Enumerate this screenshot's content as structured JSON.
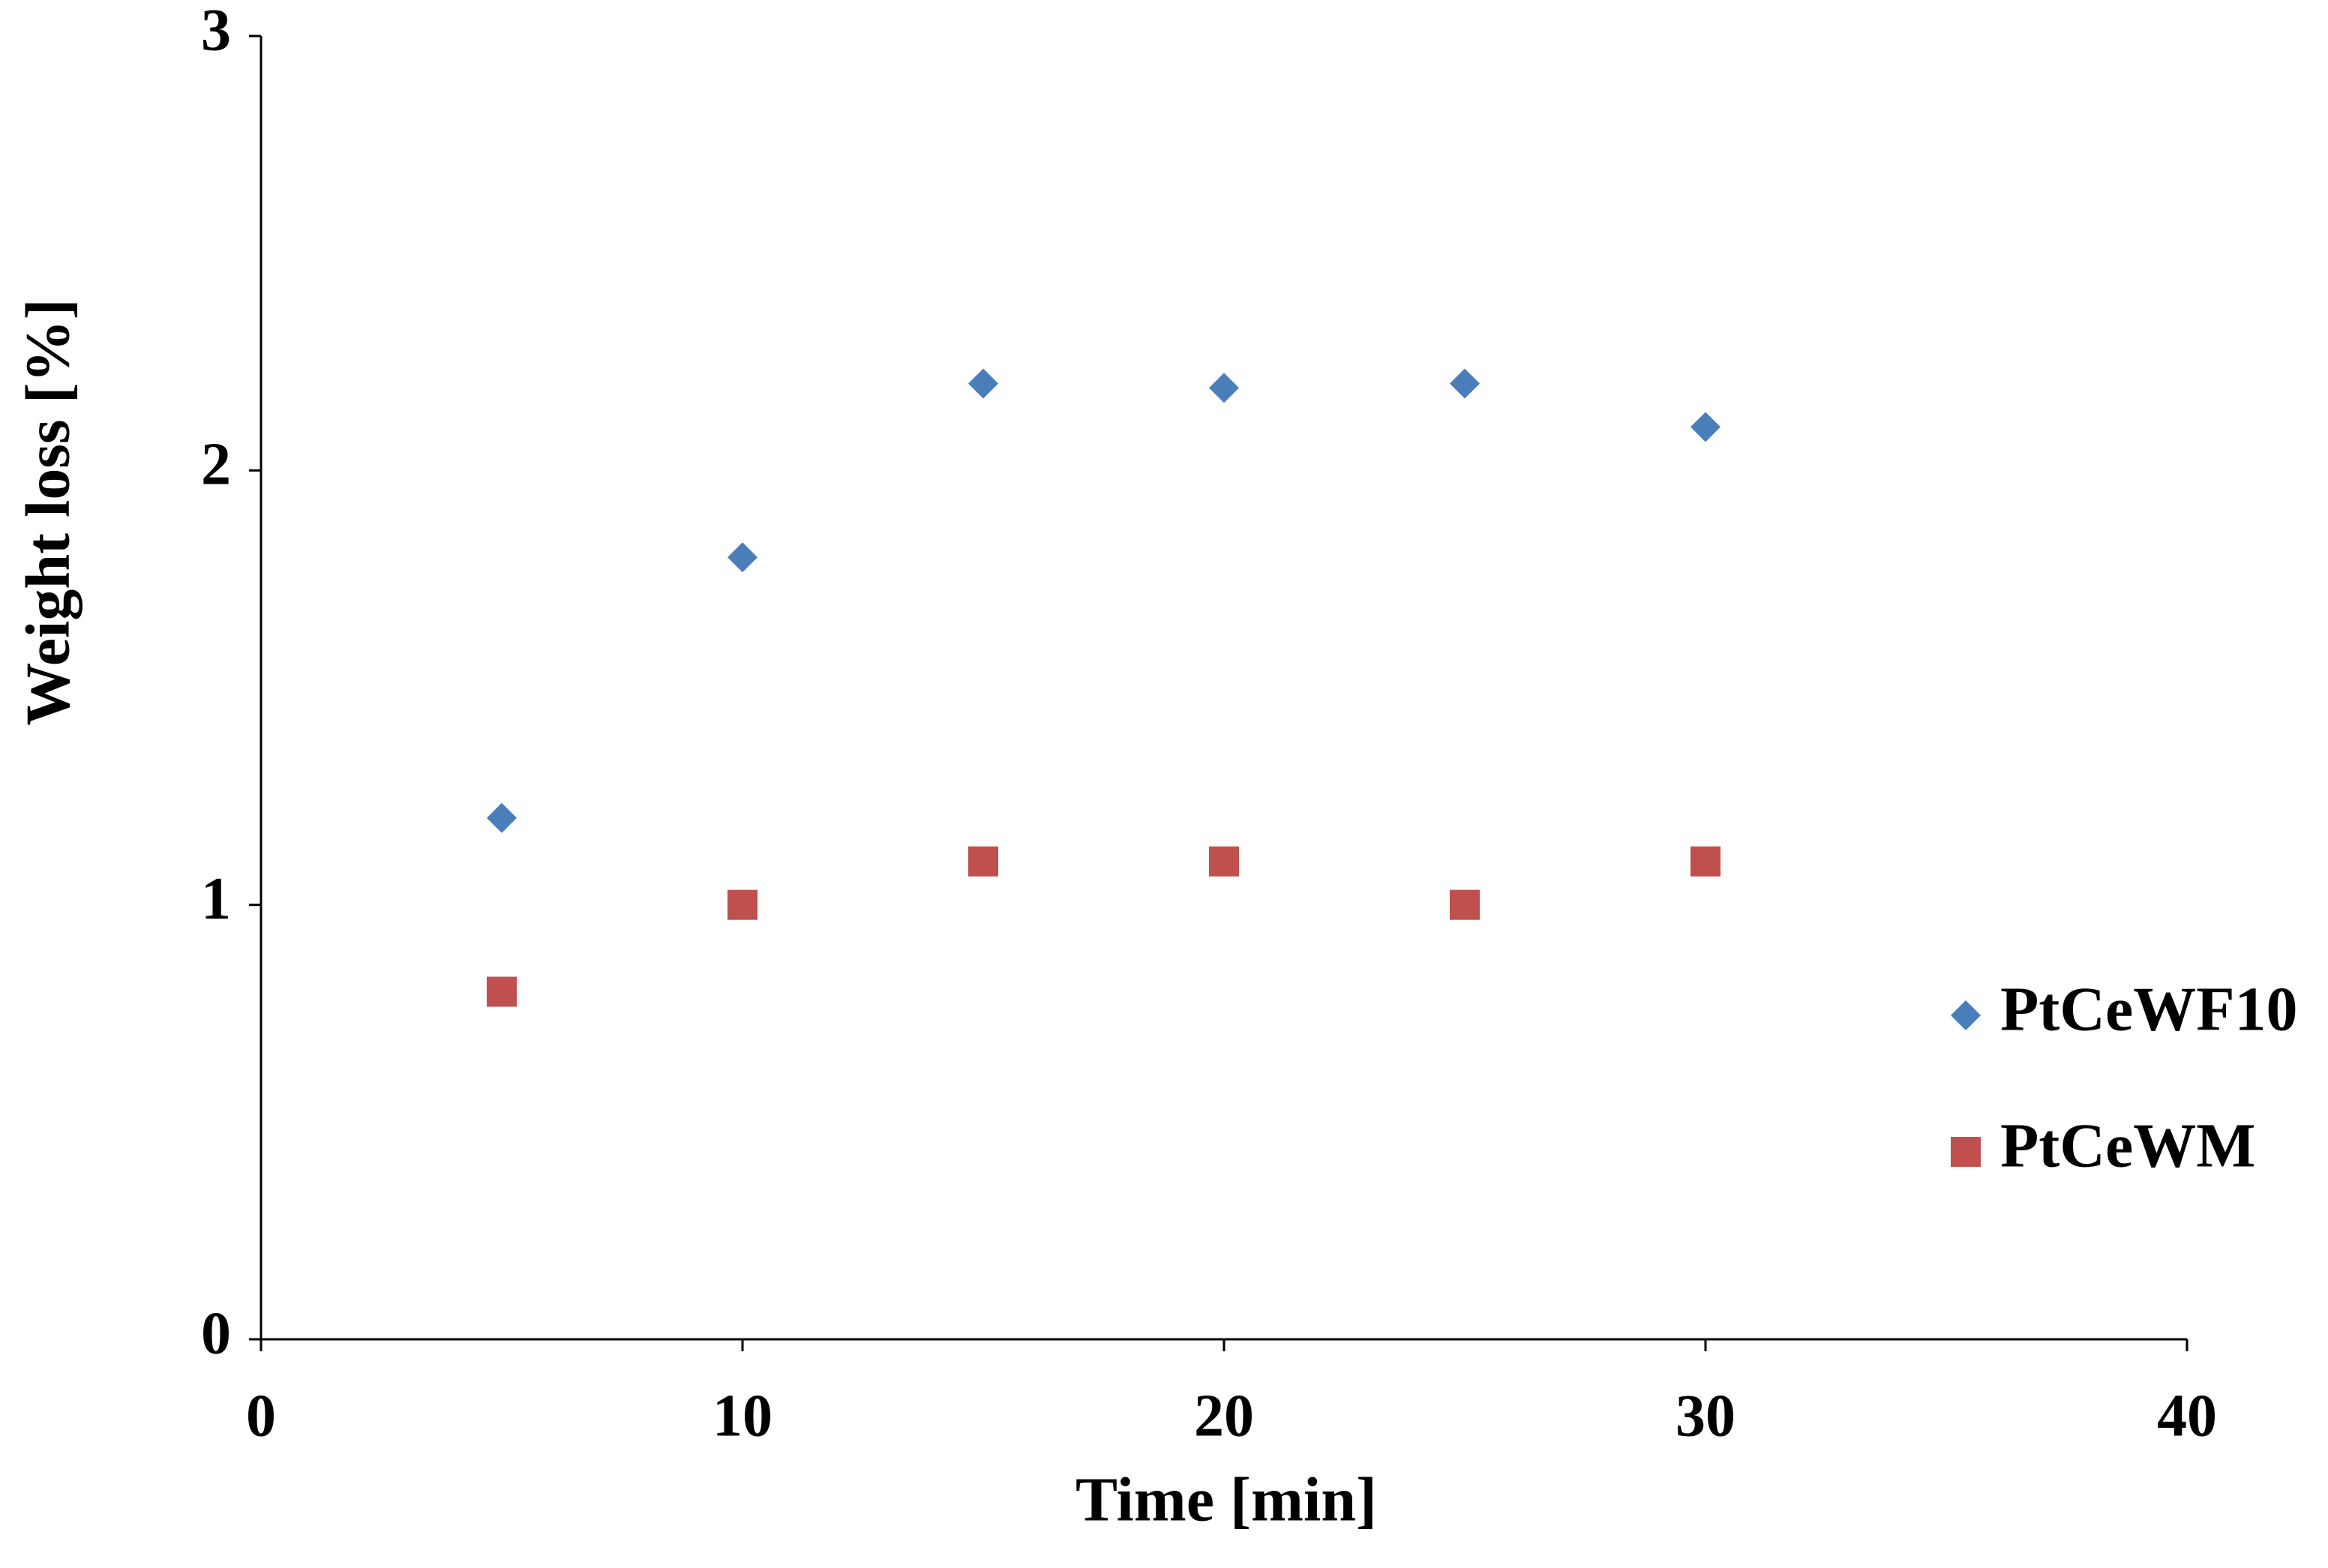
{
  "chart_data": {
    "type": "scatter",
    "x_label": "Time [min]",
    "y_label": "Weight loss [%]",
    "x": [
      5,
      10,
      15,
      20,
      25,
      30
    ],
    "series": [
      {
        "name": "PtCeWF10",
        "color": "#4a7ebb",
        "marker": "diamond",
        "values": [
          1.2,
          1.8,
          2.2,
          2.19,
          2.2,
          2.1
        ]
      },
      {
        "name": "PtCeWM",
        "color": "#c0504d",
        "marker": "square",
        "values": [
          0.8,
          1.0,
          1.1,
          1.1,
          1.0,
          1.1
        ]
      }
    ],
    "xlim": [
      0,
      40
    ],
    "xticks": [
      0,
      10,
      20,
      30,
      40
    ],
    "ylim": [
      0,
      3
    ],
    "yticks": [
      0,
      1,
      2,
      3
    ],
    "grid": false,
    "legend": "right"
  }
}
